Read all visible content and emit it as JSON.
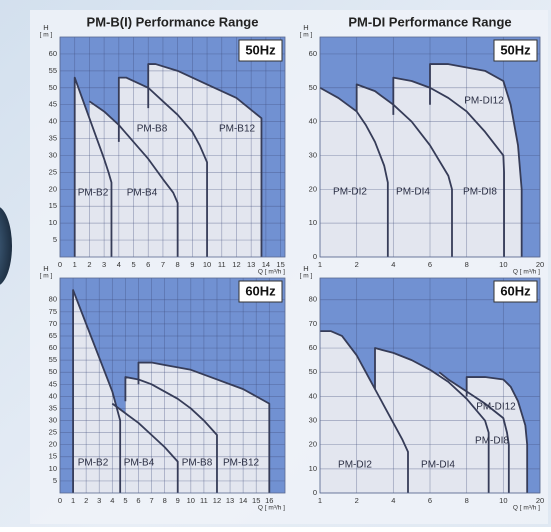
{
  "chart_data": [
    {
      "type": "area",
      "title": "PM-B(I) Performance Range",
      "frequency_label": "50Hz",
      "x_label": "Q [ m³/h ]",
      "y_label": "H",
      "y_unit": "[ m ]",
      "xlim": [
        0,
        15.3
      ],
      "ylim": [
        0,
        65
      ],
      "xticks": [
        0,
        1,
        2,
        3,
        4,
        5,
        6,
        7,
        8,
        9,
        10,
        11,
        12,
        13,
        14,
        15
      ],
      "yticks": [
        5,
        10,
        15,
        20,
        25,
        30,
        35,
        40,
        45,
        50,
        55,
        60
      ],
      "grid": true,
      "background_color": "#7191d2",
      "area_color": "#e3e6ef",
      "line_color": "#363c58",
      "series": [
        {
          "name": "PM-B2",
          "x": [
            1,
            1,
            1.5,
            2,
            2.5,
            3,
            3.3,
            3.5,
            3.5
          ],
          "values": [
            0,
            53,
            47,
            41,
            35,
            29,
            25,
            22,
            0
          ]
        },
        {
          "name": "PM-B4",
          "x": [
            2,
            3,
            4,
            5,
            6,
            7,
            7.7,
            8,
            8
          ],
          "values": [
            46,
            43,
            39,
            34,
            29,
            23,
            19,
            16,
            0
          ]
        },
        {
          "name": "PM-B8",
          "x": [
            4,
            4,
            4.5,
            6,
            7,
            8,
            9,
            9.5,
            10,
            10
          ],
          "values": [
            34,
            53,
            53,
            50,
            46,
            42,
            37,
            33,
            28,
            0
          ]
        },
        {
          "name": "PM-B12",
          "x": [
            6,
            6,
            6.5,
            8,
            10,
            12,
            13.7,
            13.7
          ],
          "values": [
            44,
            57,
            57,
            55,
            51,
            47,
            41,
            0
          ]
        }
      ]
    },
    {
      "type": "area",
      "title": "PM-DI Performance Range",
      "frequency_label": "50Hz",
      "x_label": "Q [ m³/h ]",
      "y_label": "H",
      "y_unit": "[ m ]",
      "x_scale": "tick-even",
      "xlim": [
        1,
        20
      ],
      "ylim": [
        0,
        65
      ],
      "xticks": [
        1,
        2,
        4,
        6,
        8,
        10,
        20
      ],
      "yticks": [
        0,
        10,
        20,
        30,
        40,
        50,
        60
      ],
      "grid": true,
      "background_color": "#7191d2",
      "area_color": "#e3e6ef",
      "line_color": "#363c58",
      "series": [
        {
          "name": "PM-DI2",
          "x": [
            1,
            1.5,
            2,
            2.5,
            3,
            3.5,
            3.7,
            3.7
          ],
          "values": [
            50,
            47,
            43,
            39,
            34,
            27,
            22,
            0
          ]
        },
        {
          "name": "PM-DI4",
          "x": [
            2,
            2,
            3,
            4,
            5,
            6,
            7,
            7.2,
            7.2
          ],
          "values": [
            43,
            51,
            49,
            45,
            40,
            33,
            24,
            20,
            0
          ]
        },
        {
          "name": "PM-DI8",
          "x": [
            4,
            4,
            5,
            6,
            7,
            8,
            9,
            10,
            10.2,
            10.2
          ],
          "values": [
            42,
            53,
            52,
            50,
            47,
            43,
            37,
            30,
            25,
            0
          ]
        },
        {
          "name": "PM-DI12",
          "x": [
            6,
            6,
            7,
            8,
            9,
            10,
            12,
            14,
            15,
            15
          ],
          "values": [
            45,
            57,
            57,
            56,
            55,
            52,
            45,
            33,
            20,
            0
          ]
        }
      ]
    },
    {
      "type": "area",
      "frequency_label": "60Hz",
      "x_label": "Q [ m³/h ]",
      "y_label": "H",
      "y_unit": "[ m ]",
      "xlim": [
        0,
        17.2
      ],
      "ylim": [
        0,
        89
      ],
      "xticks": [
        0,
        1,
        2,
        3,
        4,
        5,
        6,
        7,
        8,
        9,
        10,
        11,
        12,
        13,
        14,
        15,
        16
      ],
      "yticks": [
        5,
        10,
        15,
        20,
        25,
        30,
        35,
        40,
        45,
        50,
        55,
        60,
        65,
        70,
        75,
        80
      ],
      "grid": true,
      "background_color": "#7191d2",
      "area_color": "#e3e6ef",
      "line_color": "#363c58",
      "series": [
        {
          "name": "PM-B2",
          "x": [
            1,
            1,
            2,
            3,
            4,
            4.6,
            4.6
          ],
          "values": [
            0,
            84,
            70,
            56,
            42,
            30,
            0
          ]
        },
        {
          "name": "PM-B4",
          "x": [
            4,
            5,
            6,
            7,
            8,
            9,
            9
          ],
          "values": [
            37,
            33,
            29,
            24,
            19,
            13,
            0
          ]
        },
        {
          "name": "PM-B8",
          "x": [
            5,
            5,
            6,
            7,
            8,
            9,
            10,
            11,
            12,
            12
          ],
          "values": [
            38,
            48,
            47,
            45,
            42,
            39,
            35,
            30,
            24,
            0
          ]
        },
        {
          "name": "PM-B12",
          "x": [
            6,
            6,
            7,
            8,
            10,
            12,
            14,
            15,
            16,
            16
          ],
          "values": [
            45,
            54,
            54,
            53,
            51,
            47,
            43,
            40,
            37,
            0
          ]
        }
      ]
    },
    {
      "type": "area",
      "frequency_label": "60Hz",
      "x_label": "Q [ m³/h ]",
      "y_label": "H",
      "y_unit": "[ m ]",
      "x_scale": "tick-even",
      "xlim": [
        1,
        20
      ],
      "ylim": [
        0,
        89
      ],
      "xticks": [
        1,
        2,
        4,
        6,
        8,
        10,
        20
      ],
      "yticks": [
        0,
        10,
        20,
        30,
        40,
        50,
        60,
        70,
        80
      ],
      "grid": true,
      "background_color": "#7191d2",
      "area_color": "#e3e6ef",
      "line_color": "#363c58",
      "series": [
        {
          "name": "PM-DI2",
          "x": [
            1,
            1.3,
            1.6,
            2,
            2.5,
            3,
            3.5,
            4,
            4.5,
            4.8,
            4.8
          ],
          "values": [
            67,
            67,
            65,
            57,
            50,
            43,
            36,
            29,
            22,
            17,
            0
          ]
        },
        {
          "name": "PM-DI4",
          "x": [
            3,
            3,
            4,
            5,
            6,
            7,
            8,
            9,
            9.2,
            9.2
          ],
          "values": [
            43,
            60,
            58,
            55,
            51,
            46,
            39,
            30,
            25,
            0
          ]
        },
        {
          "name": "PM-DI8",
          "x": [
            6.5,
            7,
            8,
            9,
            10,
            11,
            11.5,
            11.5
          ],
          "values": [
            50,
            47,
            42,
            37,
            31,
            25,
            20,
            0
          ]
        },
        {
          "name": "PM-DI12",
          "x": [
            8,
            8,
            9,
            10,
            12,
            14,
            16,
            16.5,
            16.5
          ],
          "values": [
            40,
            48,
            48,
            47,
            44,
            38,
            28,
            20,
            0
          ]
        }
      ]
    }
  ]
}
